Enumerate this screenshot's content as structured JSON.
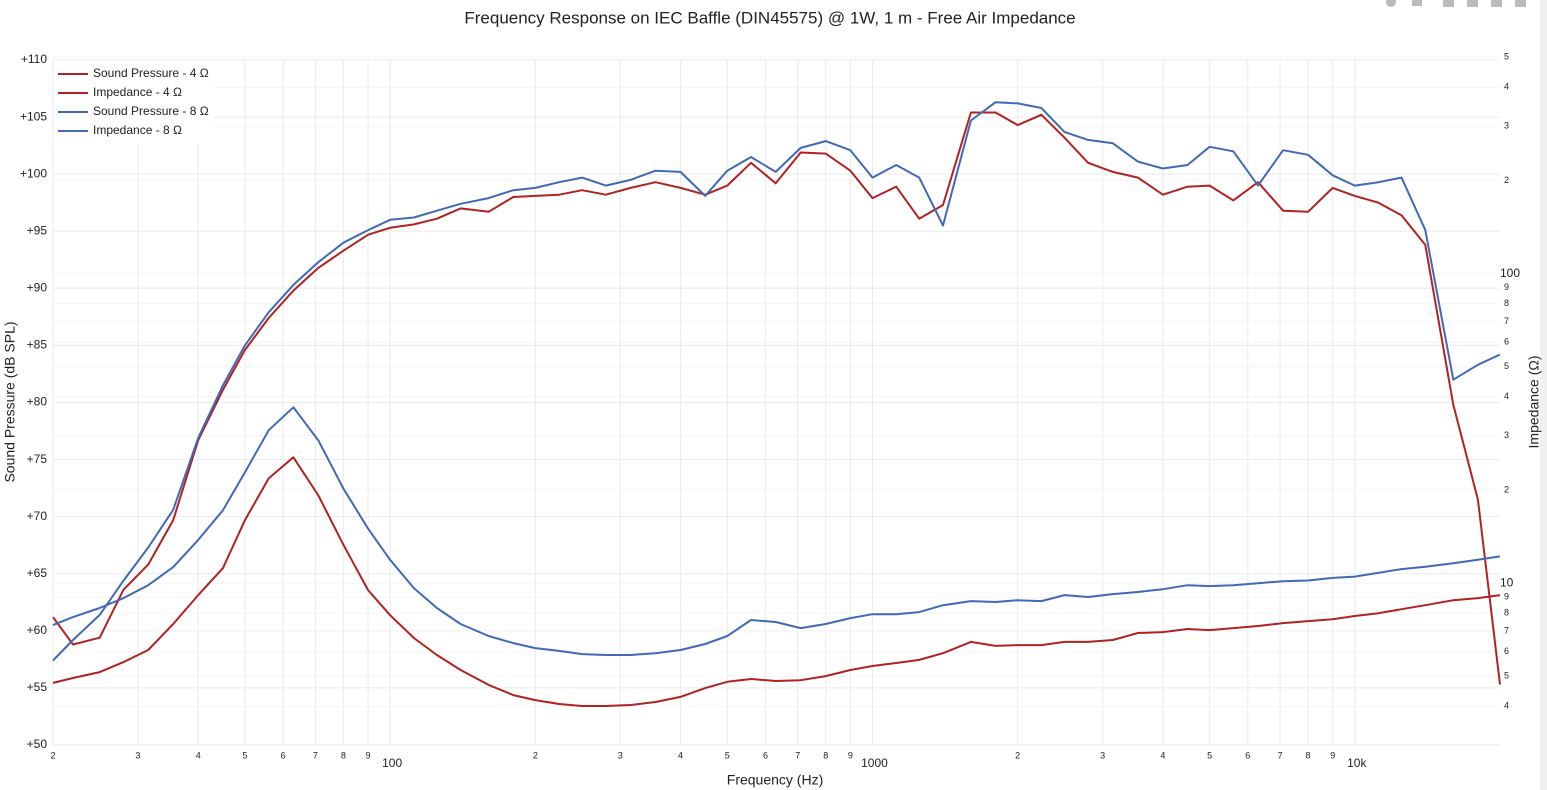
{
  "chart_data": {
    "type": "line",
    "title": "Frequency Response on IEC Baffle (DIN45575) @ 1W, 1 m - Free Air Impedance",
    "xlabel": "Frequency (Hz)",
    "ylabel": "Sound Pressure (dB SPL)",
    "y2label": "Impedance (Ω)",
    "xscale": "log",
    "y2scale": "log",
    "grid": true,
    "legend": "upper left",
    "xlim": [
      20,
      20000
    ],
    "ylim": [
      50,
      110
    ],
    "y2lim": [
      3,
      490
    ],
    "xticks": [
      {
        "value": 20,
        "label": "2"
      },
      {
        "value": 30,
        "label": "3"
      },
      {
        "value": 40,
        "label": "4"
      },
      {
        "value": 50,
        "label": "5"
      },
      {
        "value": 60,
        "label": "6"
      },
      {
        "value": 70,
        "label": "7"
      },
      {
        "value": 80,
        "label": "8"
      },
      {
        "value": 90,
        "label": "9"
      },
      100,
      {
        "value": 200,
        "label": "2"
      },
      {
        "value": 300,
        "label": "3"
      },
      {
        "value": 400,
        "label": "4"
      },
      {
        "value": 500,
        "label": "5"
      },
      {
        "value": 600,
        "label": "6"
      },
      {
        "value": 700,
        "label": "7"
      },
      {
        "value": 800,
        "label": "8"
      },
      {
        "value": 900,
        "label": "9"
      },
      1000,
      {
        "value": 2000,
        "label": "2"
      },
      {
        "value": 3000,
        "label": "3"
      },
      {
        "value": 4000,
        "label": "4"
      },
      {
        "value": 5000,
        "label": "5"
      },
      {
        "value": 6000,
        "label": "6"
      },
      {
        "value": 7000,
        "label": "7"
      },
      {
        "value": 8000,
        "label": "8"
      },
      {
        "value": 9000,
        "label": "9"
      },
      {
        "value": 10000,
        "label": "10k"
      }
    ],
    "yticks": [
      {
        "value": 50,
        "label": "+50"
      },
      {
        "value": 55,
        "label": "+55"
      },
      {
        "value": 60,
        "label": "+60"
      },
      {
        "value": 65,
        "label": "+65"
      },
      {
        "value": 70,
        "label": "+70"
      },
      {
        "value": 75,
        "label": "+75"
      },
      {
        "value": 80,
        "label": "+80"
      },
      {
        "value": 85,
        "label": "+85"
      },
      {
        "value": 90,
        "label": "+90"
      },
      {
        "value": 95,
        "label": "+95"
      },
      {
        "value": 100,
        "label": "+100"
      },
      {
        "value": 105,
        "label": "+105"
      },
      {
        "value": 110,
        "label": "+110"
      }
    ],
    "y2ticks": [
      {
        "value": 4,
        "label": "4"
      },
      {
        "value": 5,
        "label": "5"
      },
      {
        "value": 6,
        "label": "6"
      },
      {
        "value": 7,
        "label": "7"
      },
      {
        "value": 8,
        "label": "8"
      },
      {
        "value": 9,
        "label": "9"
      },
      10,
      {
        "value": 20,
        "label": "2"
      },
      {
        "value": 30,
        "label": "3"
      },
      {
        "value": 40,
        "label": "4"
      },
      {
        "value": 50,
        "label": "5"
      },
      {
        "value": 60,
        "label": "6"
      },
      {
        "value": 70,
        "label": "7"
      },
      {
        "value": 80,
        "label": "8"
      },
      {
        "value": 90,
        "label": "9"
      },
      100,
      {
        "value": 200,
        "label": "2"
      },
      {
        "value": 300,
        "label": "3"
      },
      {
        "value": 400,
        "label": "4"
      },
      {
        "value": 500,
        "label": "5"
      }
    ],
    "x": [
      20,
      22,
      25,
      28,
      31.5,
      35.5,
      40,
      45,
      50,
      56,
      63,
      71,
      80,
      90,
      100,
      112,
      125,
      140,
      160,
      180,
      200,
      224,
      250,
      280,
      315,
      355,
      400,
      450,
      500,
      560,
      630,
      710,
      800,
      900,
      1000,
      1120,
      1250,
      1400,
      1600,
      1800,
      2000,
      2240,
      2500,
      2800,
      3150,
      3550,
      4000,
      4500,
      5000,
      5600,
      6300,
      7100,
      8000,
      9000,
      10000,
      11200,
      12500,
      14000,
      16000,
      18000,
      20000
    ],
    "series": [
      {
        "name": "Sound Pressure - 4 Ω",
        "color": "#b22222",
        "axis": "y",
        "values": [
          61.2,
          58.8,
          59.4,
          63.6,
          65.8,
          69.7,
          76.7,
          81.1,
          84.6,
          87.4,
          89.8,
          91.8,
          93.3,
          94.7,
          95.3,
          95.6,
          96.1,
          97.0,
          96.7,
          98.0,
          98.1,
          98.2,
          98.6,
          98.2,
          98.8,
          99.3,
          98.8,
          98.2,
          99.0,
          101.0,
          99.2,
          101.9,
          101.8,
          100.3,
          97.9,
          98.9,
          96.1,
          97.3,
          105.4,
          105.4,
          104.3,
          105.2,
          103.2,
          101.0,
          100.2,
          99.7,
          98.2,
          98.9,
          99.0,
          97.7,
          99.3,
          96.8,
          96.7,
          98.8,
          98.1,
          97.5,
          96.4,
          93.8,
          79.8,
          71.5,
          55.3
        ]
      },
      {
        "name": "Impedance - 4 Ω",
        "color": "#b22222",
        "axis": "y2",
        "values": [
          4.76,
          4.94,
          5.16,
          5.56,
          6.08,
          7.38,
          9.15,
          11.18,
          15.97,
          21.8,
          25.5,
          19.2,
          13.3,
          9.5,
          7.88,
          6.65,
          5.86,
          5.24,
          4.69,
          4.35,
          4.19,
          4.07,
          4.01,
          4.01,
          4.04,
          4.13,
          4.29,
          4.58,
          4.8,
          4.9,
          4.83,
          4.86,
          5.01,
          5.24,
          5.4,
          5.52,
          5.65,
          5.94,
          6.46,
          6.27,
          6.31,
          6.31,
          6.46,
          6.46,
          6.55,
          6.9,
          6.95,
          7.11,
          7.05,
          7.16,
          7.27,
          7.43,
          7.54,
          7.65,
          7.83,
          8.0,
          8.24,
          8.49,
          8.81,
          8.95,
          9.15
        ]
      },
      {
        "name": "Sound Pressure - 8 Ω",
        "color": "#4169b8",
        "axis": "y",
        "values": [
          57.4,
          59.2,
          61.4,
          64.4,
          67.3,
          70.6,
          76.9,
          81.5,
          85.0,
          87.9,
          90.3,
          92.3,
          94.0,
          95.1,
          96.0,
          96.2,
          96.8,
          97.4,
          97.9,
          98.6,
          98.8,
          99.3,
          99.7,
          99.0,
          99.5,
          100.3,
          100.2,
          98.1,
          100.3,
          101.5,
          100.2,
          102.3,
          102.9,
          102.1,
          99.7,
          100.8,
          99.7,
          95.5,
          104.7,
          106.3,
          106.2,
          105.8,
          103.7,
          103.0,
          102.7,
          101.1,
          100.5,
          100.8,
          102.4,
          102.0,
          99.0,
          102.1,
          101.7,
          99.9,
          99.0,
          99.3,
          99.7,
          95.1,
          82.0,
          83.3,
          84.2
        ]
      },
      {
        "name": "Impedance - 8 Ω",
        "color": "#4169b8",
        "axis": "y2",
        "values": [
          7.32,
          7.77,
          8.31,
          8.95,
          9.85,
          11.27,
          13.8,
          17.2,
          22.8,
          31.2,
          37.0,
          28.9,
          20.2,
          15.0,
          11.9,
          9.64,
          8.31,
          7.38,
          6.75,
          6.4,
          6.17,
          6.04,
          5.9,
          5.86,
          5.86,
          5.94,
          6.08,
          6.36,
          6.75,
          7.6,
          7.49,
          7.16,
          7.38,
          7.71,
          7.94,
          7.94,
          8.06,
          8.49,
          8.75,
          8.69,
          8.81,
          8.75,
          9.15,
          9.02,
          9.22,
          9.36,
          9.56,
          9.85,
          9.78,
          9.85,
          10.0,
          10.15,
          10.2,
          10.4,
          10.5,
          10.8,
          11.1,
          11.3,
          11.6,
          11.9,
          12.2
        ]
      }
    ]
  }
}
